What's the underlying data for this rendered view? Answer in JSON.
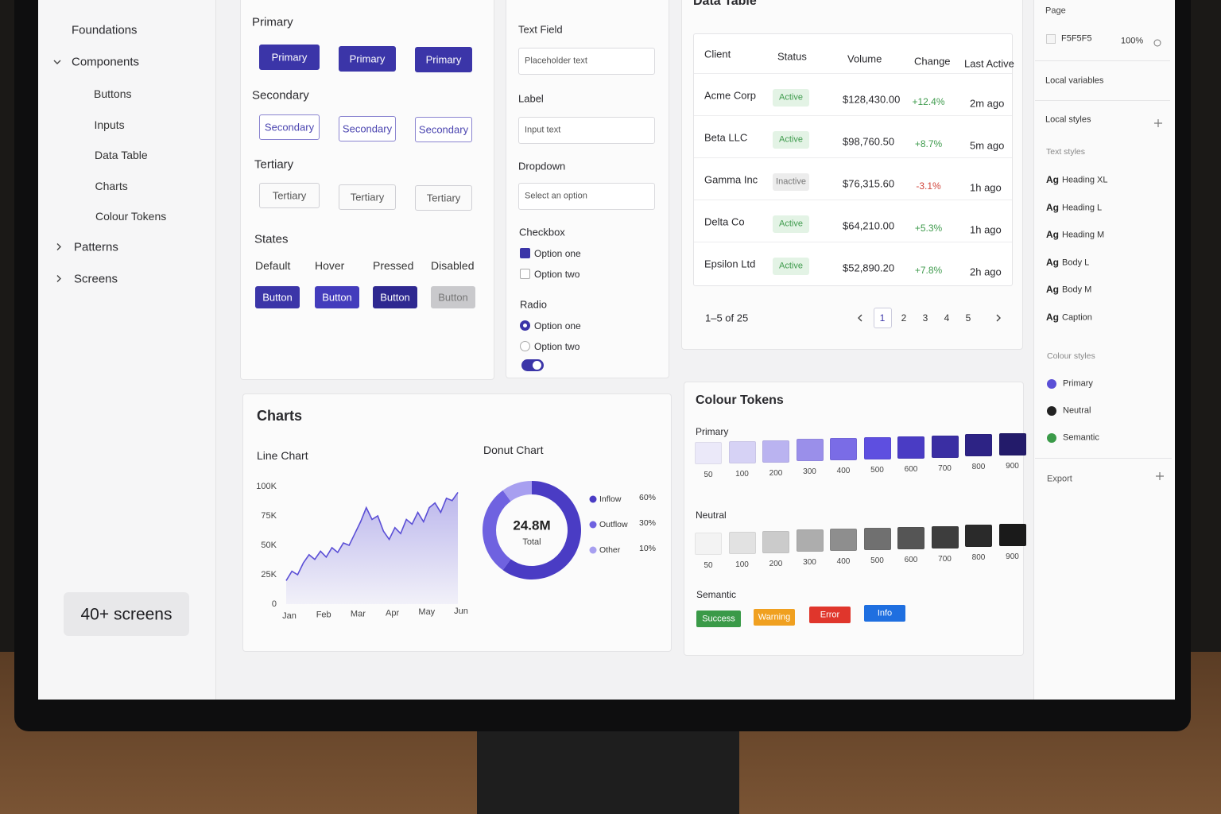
{
  "sidebar": {
    "sections": [
      {
        "label": "Foundations"
      },
      {
        "label": "Components",
        "children": [
          "Buttons",
          "Inputs",
          "Data Table",
          "Charts",
          "Colour Tokens"
        ]
      },
      {
        "label": "Patterns"
      },
      {
        "label": "Screens"
      }
    ],
    "badge": "40+ screens"
  },
  "buttons": {
    "groups": [
      {
        "title": "Primary",
        "labels": [
          "Primary",
          "Primary",
          "Primary"
        ]
      },
      {
        "title": "Secondary",
        "labels": [
          "Secondary",
          "Secondary",
          "Secondary"
        ]
      },
      {
        "title": "Tertiary",
        "labels": [
          "Tertiary",
          "Tertiary",
          "Tertiary"
        ]
      }
    ],
    "states": {
      "title": "States",
      "labels": [
        "Default",
        "Hover",
        "Pressed",
        "Disabled"
      ],
      "buttons": [
        "Button",
        "Button",
        "Button",
        "Button"
      ]
    }
  },
  "inputs": {
    "text_field": {
      "label": "Text Field",
      "value": "Placeholder text"
    },
    "label_field": {
      "label": "Label",
      "value": "Input text"
    },
    "dropdown": {
      "label": "Dropdown",
      "value": "Select an option"
    },
    "checkbox": {
      "label": "Checkbox",
      "options": [
        "Option one",
        "Option two"
      ]
    },
    "radio": {
      "label": "Radio",
      "options": [
        "Option one",
        "Option two"
      ]
    }
  },
  "table": {
    "title": "Data Table",
    "columns": [
      "Client",
      "Status",
      "Volume",
      "Change",
      "Last Active"
    ],
    "rows": [
      {
        "client": "Acme Corp",
        "status": "Active",
        "status_color": "#3f9b4d",
        "volume": "$128,430.00",
        "change": "+12.4%",
        "change_color": "#3f9b4d",
        "last_active": "2m ago"
      },
      {
        "client": "Beta LLC",
        "status": "Active",
        "status_color": "#3f9b4d",
        "volume": "$98,760.50",
        "change": "+8.7%",
        "change_color": "#3f9b4d",
        "last_active": "5m ago"
      },
      {
        "client": "Gamma Inc",
        "status": "Inactive",
        "status_color": "#777777",
        "volume": "$76,315.60",
        "change": "-3.1%",
        "change_color": "#d2463c",
        "last_active": "1h ago"
      },
      {
        "client": "Delta Co",
        "status": "Active",
        "status_color": "#3f9b4d",
        "volume": "$64,210.00",
        "change": "+5.3%",
        "change_color": "#3f9b4d",
        "last_active": "1h ago"
      },
      {
        "client": "Epsilon Ltd",
        "status": "Active",
        "status_color": "#3f9b4d",
        "volume": "$52,890.20",
        "change": "+7.8%",
        "change_color": "#3f9b4d",
        "last_active": "2h ago"
      }
    ],
    "pagination": {
      "summary": "1–5 of 25",
      "pages": [
        "1",
        "2",
        "3",
        "4",
        "5"
      ]
    }
  },
  "charts_panel": {
    "title": "Charts"
  },
  "chart_data": [
    {
      "type": "line",
      "title": "Line Chart",
      "categories": [
        "Jan",
        null,
        null,
        null,
        null,
        null,
        "Feb",
        null,
        null,
        null,
        null,
        null,
        "Mar",
        null,
        null,
        null,
        null,
        null,
        "Apr",
        null,
        null,
        null,
        null,
        null,
        "May",
        null,
        null,
        null,
        null,
        null,
        "Jun"
      ],
      "values": [
        20000,
        28000,
        25000,
        35000,
        42000,
        38000,
        45000,
        40000,
        48000,
        44000,
        52000,
        50000,
        60000,
        70000,
        82000,
        72000,
        75000,
        62000,
        55000,
        65000,
        60000,
        72000,
        68000,
        78000,
        70000,
        82000,
        86000,
        78000,
        90000,
        88000,
        95000
      ],
      "color": "#5b4fd6",
      "ylim": [
        0,
        100000
      ],
      "yticks": [
        0,
        {
          "value": 25000,
          "label": "25K"
        },
        {
          "value": 50000,
          "label": "50K"
        },
        {
          "value": 75000,
          "label": "75K"
        },
        {
          "value": 100000,
          "label": "100K"
        }
      ],
      "grid": false
    },
    {
      "type": "donut",
      "title": "Donut Chart",
      "center_value": "24.8M",
      "center_label": "Total",
      "categories": [
        "Inflow",
        "Outflow",
        "Other"
      ],
      "values": [
        60,
        30,
        10
      ],
      "value_labels": [
        "60%",
        "30%",
        "10%"
      ],
      "colors": [
        "#4a3cc4",
        "#6f62e0",
        "#a79ff0"
      ]
    }
  ],
  "colour_tokens": {
    "title": "Colour Tokens",
    "scales": [
      {
        "label": "Primary",
        "steps": [
          "50",
          "100",
          "200",
          "300",
          "400",
          "500",
          "600",
          "700",
          "800",
          "900"
        ],
        "colors": [
          "#ebe9f9",
          "#d6d2f5",
          "#bab3f0",
          "#9a8fea",
          "#7a6ce6",
          "#5e4fe0",
          "#4a3cc4",
          "#3a2ea3",
          "#2d2385",
          "#231b6a"
        ]
      },
      {
        "label": "Neutral",
        "steps": [
          "50",
          "100",
          "200",
          "300",
          "400",
          "500",
          "600",
          "700",
          "800",
          "900"
        ],
        "colors": [
          "#f3f3f3",
          "#e2e2e2",
          "#cbcbcb",
          "#adadad",
          "#8e8e8e",
          "#707070",
          "#555555",
          "#3d3d3d",
          "#2a2a2a",
          "#1a1a1a"
        ]
      }
    ],
    "semantic": {
      "label": "Semantic",
      "chips": [
        {
          "label": "Success",
          "color": "#3a9a48"
        },
        {
          "label": "Warning",
          "color": "#f0a020"
        },
        {
          "label": "Error",
          "color": "#e0362c"
        },
        {
          "label": "Info",
          "color": "#1f6fe0"
        }
      ]
    }
  },
  "inspector": {
    "page_label": "Page",
    "page_color": "F5F5F5",
    "zoom": "100%",
    "local_variables": "Local variables",
    "local_styles": "Local styles",
    "text_styles": {
      "label": "Text styles",
      "prefix": "Ag",
      "items": [
        "Heading XL",
        "Heading L",
        "Heading M",
        "Body L",
        "Body M",
        "Caption"
      ]
    },
    "colour_styles": {
      "label": "Colour styles",
      "items": [
        {
          "label": "Primary",
          "color": "#5a4fd6"
        },
        {
          "label": "Neutral",
          "color": "#222222"
        },
        {
          "label": "Semantic",
          "color": "#3a9a48"
        }
      ]
    },
    "export": "Export"
  }
}
